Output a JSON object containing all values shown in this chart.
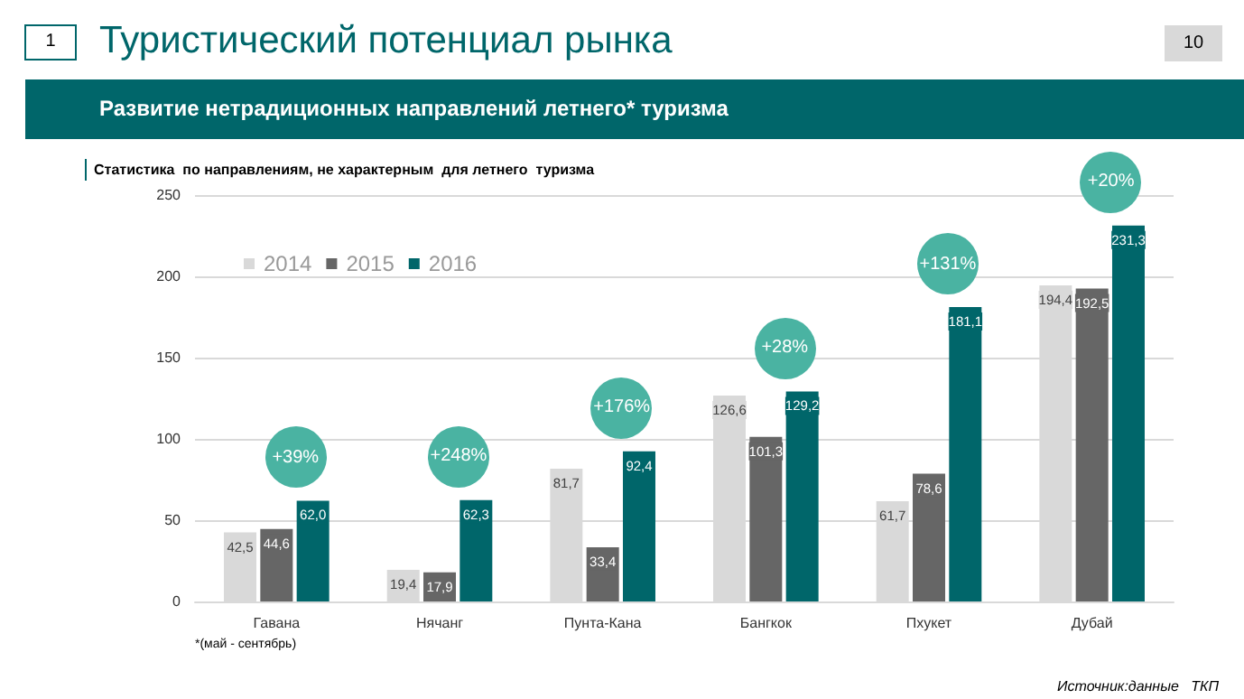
{
  "chart_data": {
    "type": "bar",
    "title": "Туристический потенциал рынка",
    "subtitle": "Развитие нетрадиционных направлений летнего* туризма",
    "categories": [
      "Гавана",
      "Нячанг",
      "Пунта-Кана",
      "Бангкок",
      "Пхукет",
      "Дубай"
    ],
    "series": [
      {
        "name": "2014",
        "color": "#d9d9d9",
        "values": [
          42.5,
          19.4,
          81.7,
          126.6,
          61.7,
          194.4
        ],
        "value_labels": [
          "42,5",
          "19,4",
          "81,7",
          "126,6",
          "61,7",
          "194,4"
        ]
      },
      {
        "name": "2015",
        "color": "#666666",
        "values": [
          44.6,
          17.9,
          33.4,
          101.3,
          78.6,
          192.5
        ],
        "value_labels": [
          "44,6",
          "17,9",
          "33,4",
          "101,3",
          "78,6",
          "192,5"
        ]
      },
      {
        "name": "2016",
        "color": "#00666a",
        "values": [
          62.0,
          62.3,
          92.4,
          129.2,
          181.1,
          231.3
        ],
        "value_labels": [
          "62,0",
          "62,3",
          "92,4",
          "129,2",
          "181,1",
          "231,3"
        ]
      }
    ],
    "ylim": [
      0,
      250
    ],
    "yticks": [
      0,
      50,
      100,
      150,
      200,
      250
    ],
    "grid": "y",
    "legend": "top left",
    "annotations": [
      "1",
      "10",
      "Статистика  по направлениям, не характерным  для летнего  туризма",
      "*(май - сентябрь)",
      "Источник:данные   ТКП",
      "+39%",
      "+248%",
      "+176%",
      "+28%",
      "+131%",
      "+20%"
    ]
  }
}
